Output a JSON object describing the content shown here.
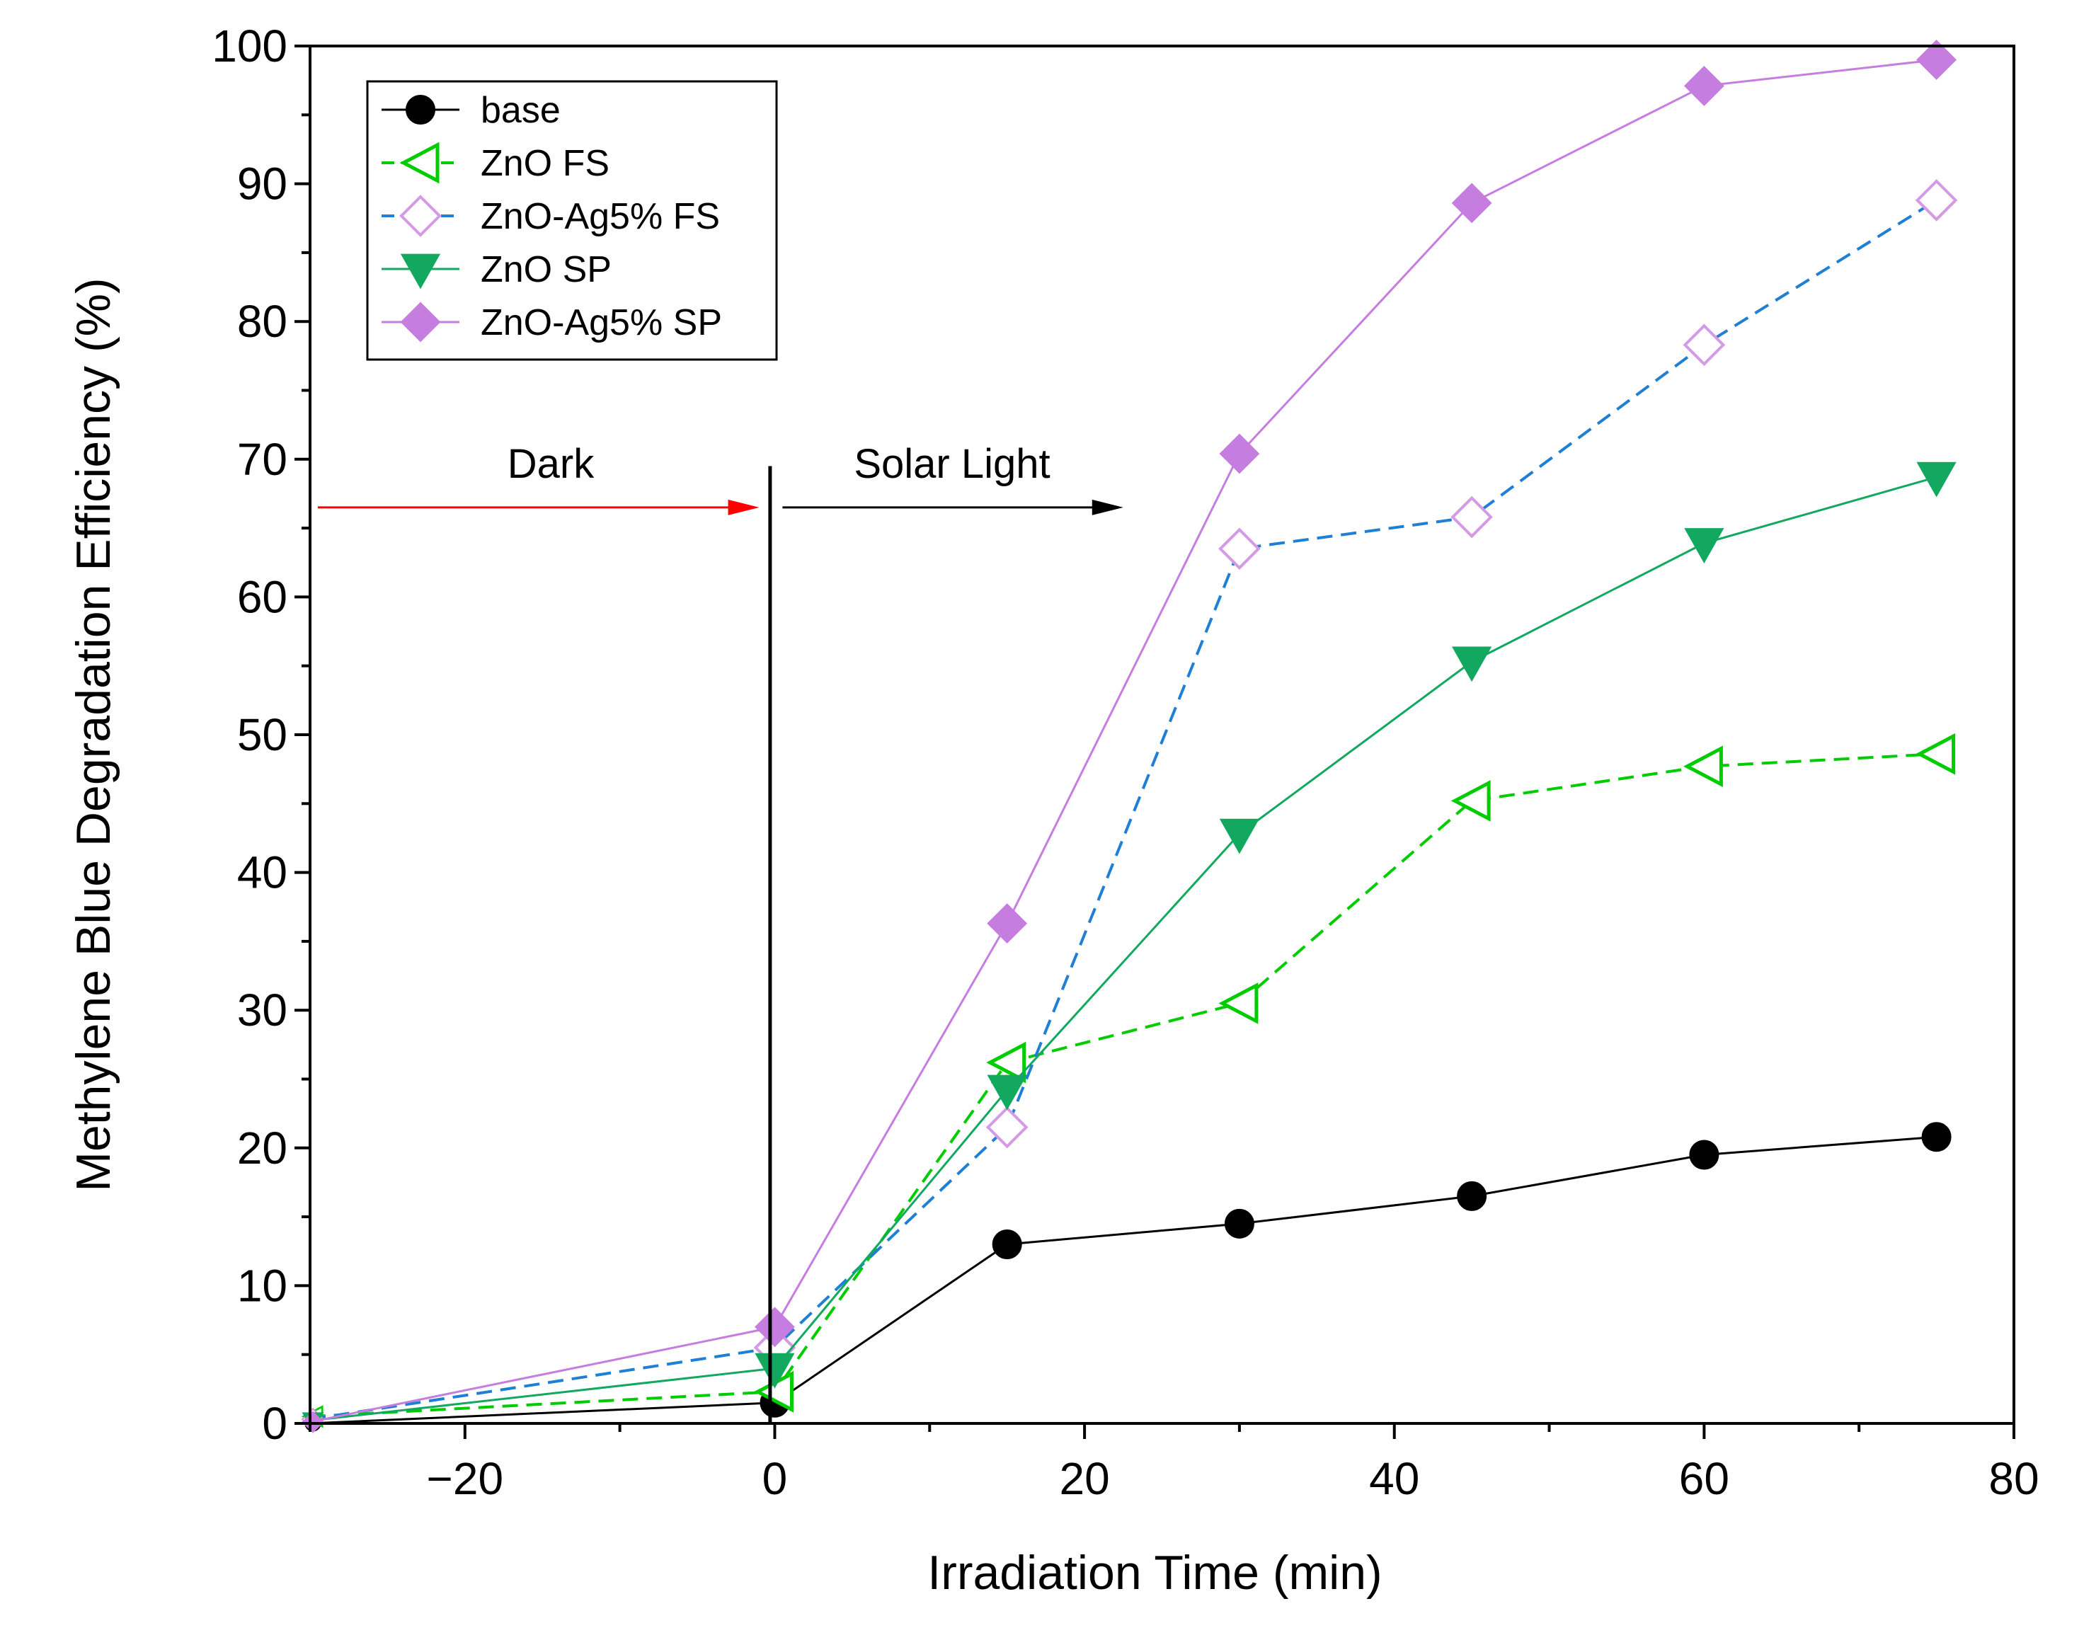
{
  "chart_data": {
    "type": "line",
    "title": "",
    "xlabel": "Irradiation Time (min)",
    "ylabel": "Methylene Blue Degradation Efficiency (%)",
    "xlim": [
      -30,
      80
    ],
    "ylim": [
      0,
      100
    ],
    "xticks": [
      -20,
      0,
      20,
      40,
      60,
      80
    ],
    "xtick_labels": [
      "−20",
      "0",
      "20",
      "40",
      "60",
      "80"
    ],
    "yticks": [
      0,
      10,
      20,
      30,
      40,
      50,
      60,
      70,
      80,
      90,
      100
    ],
    "ytick_labels": [
      "0",
      "10",
      "20",
      "30",
      "40",
      "50",
      "60",
      "70",
      "80",
      "90",
      "100"
    ],
    "grid": false,
    "legend_position": "top-left",
    "x": [
      -30,
      0,
      15,
      30,
      45,
      60,
      75
    ],
    "series": [
      {
        "name": "base",
        "values": [
          0,
          1.5,
          13.0,
          14.5,
          16.5,
          19.5,
          20.8
        ],
        "color": "#000000",
        "marker": "circle-filled",
        "dash": "solid"
      },
      {
        "name": "ZnO FS",
        "values": [
          0.5,
          2.3,
          26.2,
          30.5,
          45.2,
          47.7,
          48.6
        ],
        "color": "#00cc00",
        "marker": "triangle-left-open",
        "dash": "dashed"
      },
      {
        "name": "ZnO-Ag5% FS",
        "values": [
          0.3,
          5.5,
          21.5,
          63.5,
          65.8,
          78.3,
          88.8
        ],
        "color": "#1f7fd4",
        "marker": "diamond-open",
        "marker_color": "#d59ae6",
        "dash": "dashed"
      },
      {
        "name": "ZnO SP",
        "values": [
          0.2,
          4.0,
          24.2,
          42.8,
          55.3,
          63.9,
          68.7
        ],
        "color": "#12a860",
        "marker": "triangle-down-filled",
        "dash": "solid"
      },
      {
        "name": "ZnO-Ag5% SP",
        "values": [
          0.1,
          7.0,
          36.3,
          70.4,
          88.6,
          97.1,
          99.0
        ],
        "color": "#c67de0",
        "marker": "diamond-filled",
        "dash": "solid"
      }
    ],
    "annotations": [
      {
        "text": "Dark",
        "color": "#ff0000",
        "arrow_from_x": -29.5,
        "arrow_to_x": -1,
        "y": 66.5
      },
      {
        "text": "Solar Light",
        "color": "#000000",
        "arrow_from_x": 0.5,
        "arrow_to_x": 22.5,
        "y": 66.5
      }
    ],
    "divider_x": -0.3,
    "divider_top_y": 69.5
  }
}
